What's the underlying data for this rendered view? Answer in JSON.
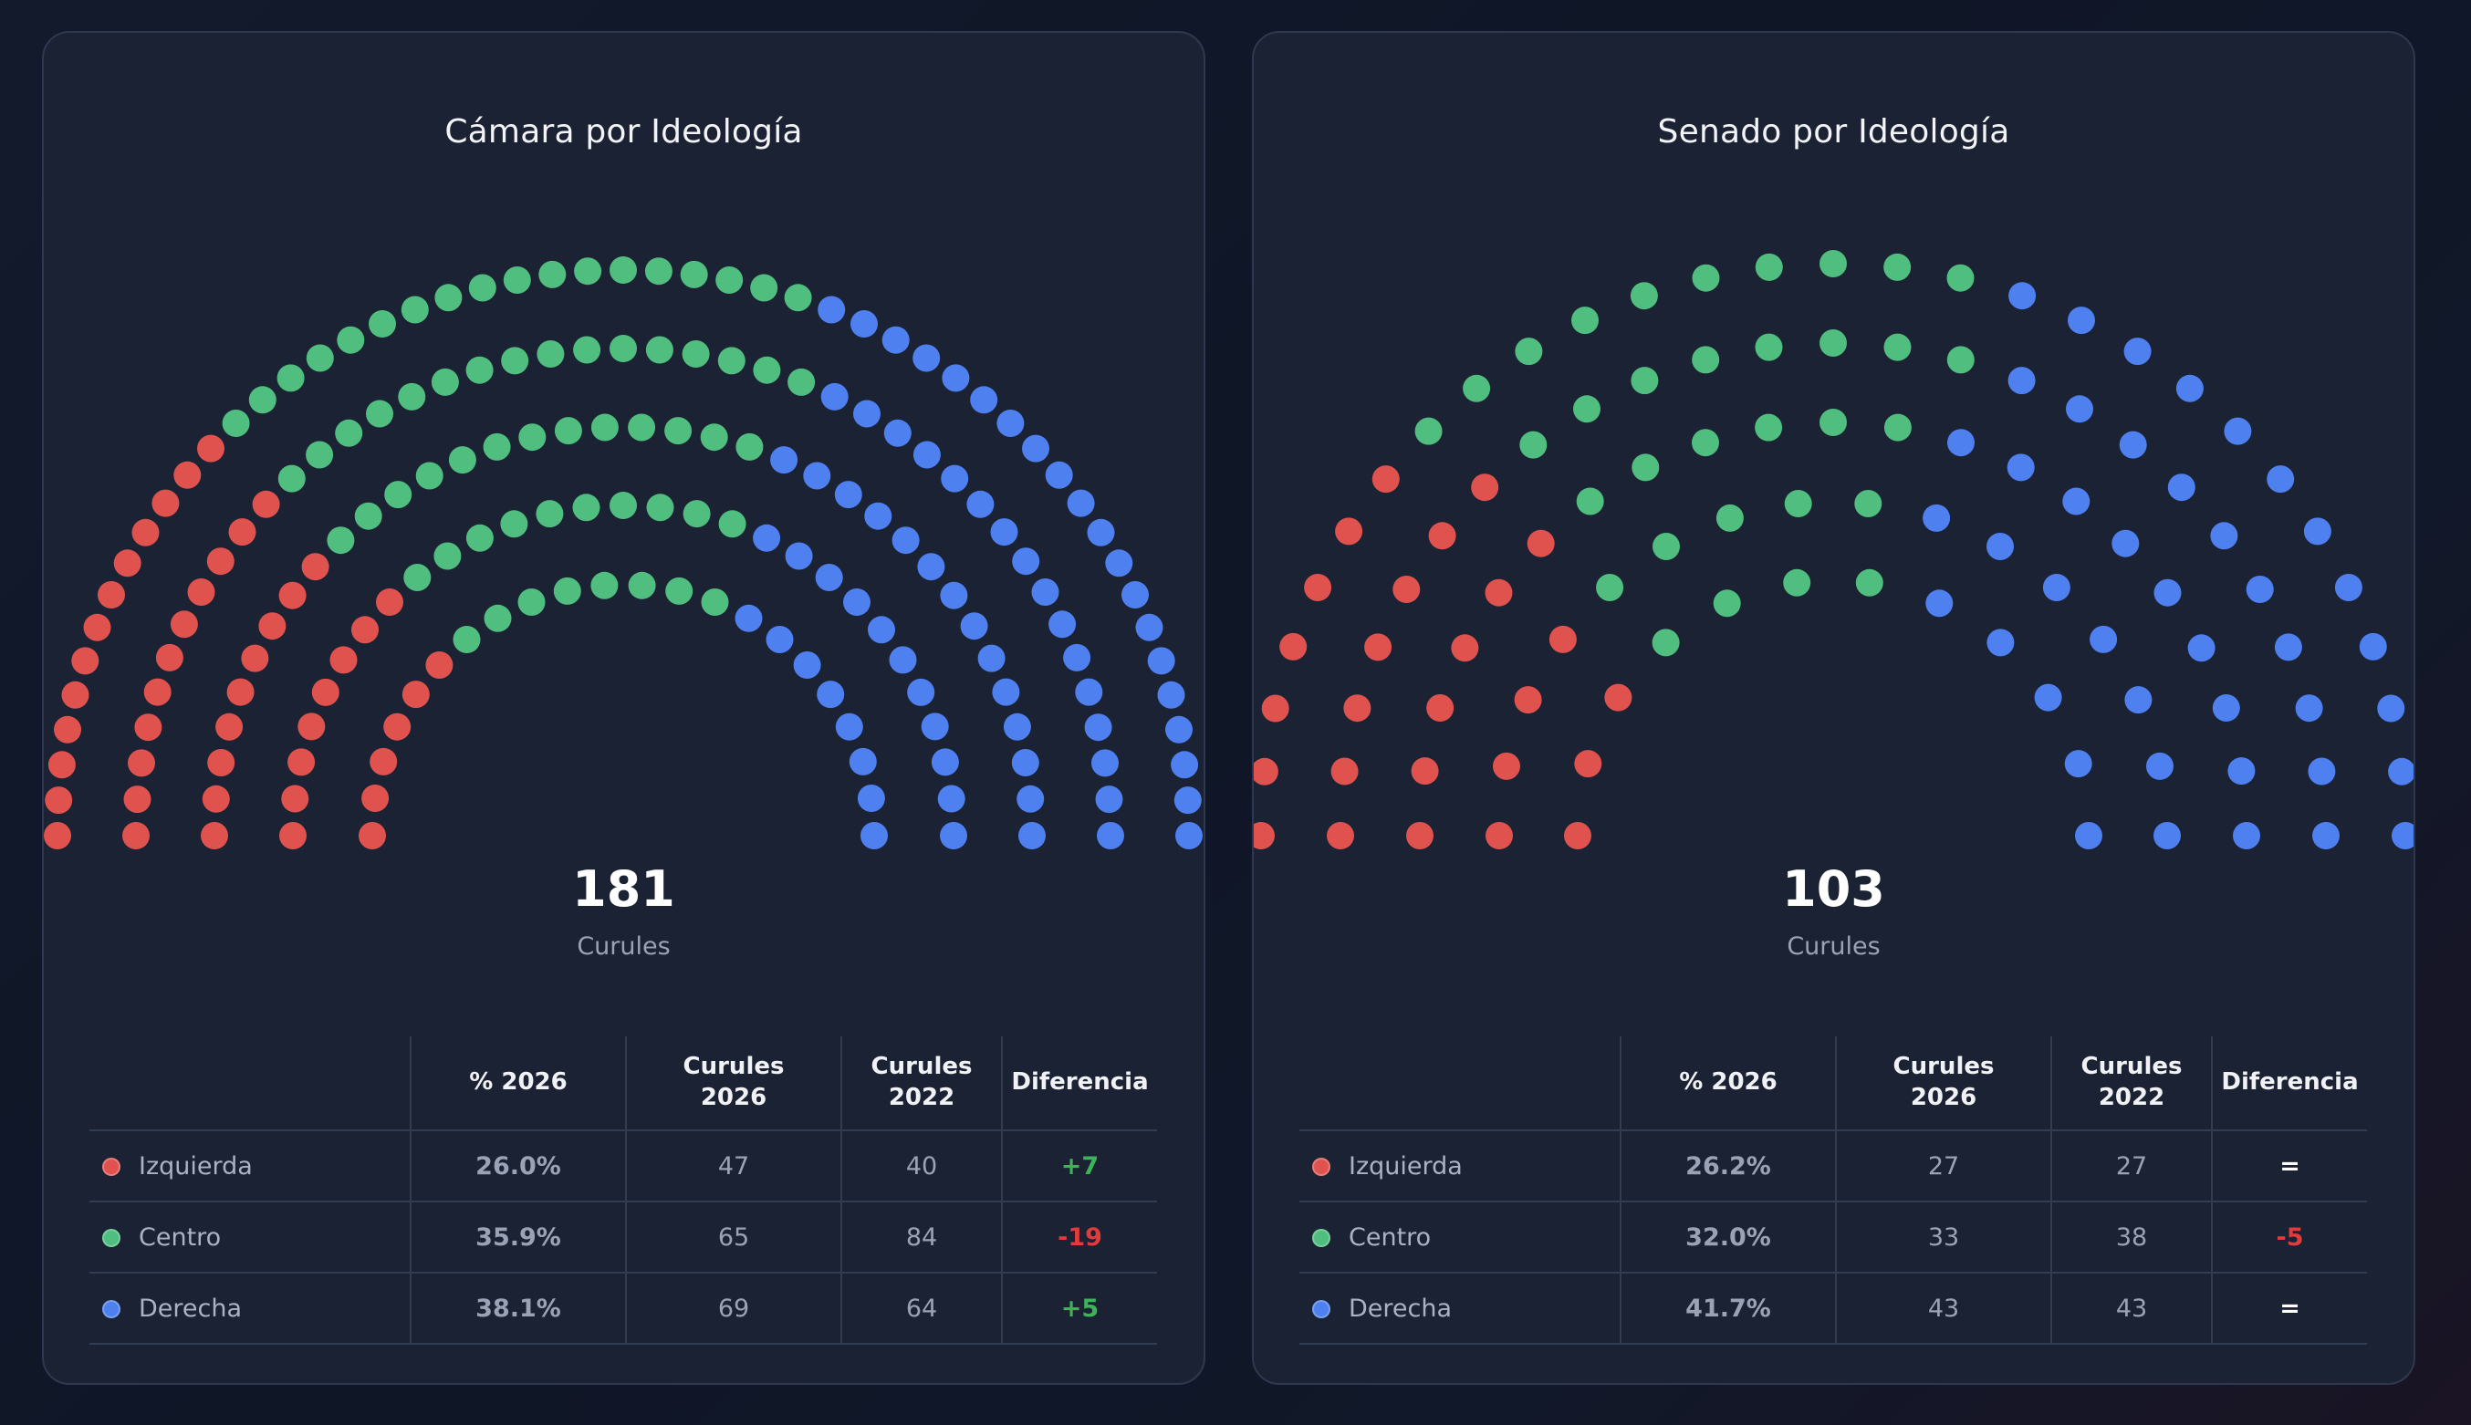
{
  "colors": {
    "izquierda": "#e0524e",
    "centro": "#4fbe7f",
    "derecha": "#4e80f0",
    "positive": "#3cb45a",
    "negative": "#e23b3b",
    "neutral": "#ffffff"
  },
  "table_headers": {
    "blank": "",
    "pct": "% 2026",
    "curules2026_line1": "Curules",
    "curules2026_line2": "2026",
    "curules2022_line1": "Curules",
    "curules2022_line2": "2022",
    "diff": "Diferencia"
  },
  "camara": {
    "title": "Cámara por Ideología",
    "total": "181",
    "total_label": "Curules",
    "rows": [
      {
        "name": "Izquierda",
        "pct": "26.0%",
        "c2026": "47",
        "c2022": "40",
        "diff": "+7"
      },
      {
        "name": "Centro",
        "pct": "35.9%",
        "c2026": "65",
        "c2022": "84",
        "diff": "-19"
      },
      {
        "name": "Derecha",
        "pct": "38.1%",
        "c2026": "69",
        "c2022": "64",
        "diff": "+5"
      }
    ]
  },
  "senado": {
    "title": "Senado por Ideología",
    "total": "103",
    "total_label": "Curules",
    "rows": [
      {
        "name": "Izquierda",
        "pct": "26.2%",
        "c2026": "27",
        "c2022": "27",
        "diff": "="
      },
      {
        "name": "Centro",
        "pct": "32.0%",
        "c2026": "33",
        "c2022": "38",
        "diff": "-5"
      },
      {
        "name": "Derecha",
        "pct": "41.7%",
        "c2026": "43",
        "c2022": "43",
        "diff": "="
      }
    ]
  },
  "chart_data": [
    {
      "type": "parliament",
      "title": "Cámara por Ideología",
      "total": 181,
      "rows": 5,
      "categories": [
        "Izquierda",
        "Centro",
        "Derecha"
      ],
      "values": [
        47,
        65,
        69
      ],
      "values_2022": [
        40,
        84,
        64
      ]
    },
    {
      "type": "parliament",
      "title": "Senado por Ideología",
      "total": 103,
      "rows": 5,
      "categories": [
        "Izquierda",
        "Centro",
        "Derecha"
      ],
      "values": [
        27,
        33,
        43
      ],
      "values_2022": [
        27,
        38,
        43
      ]
    }
  ]
}
